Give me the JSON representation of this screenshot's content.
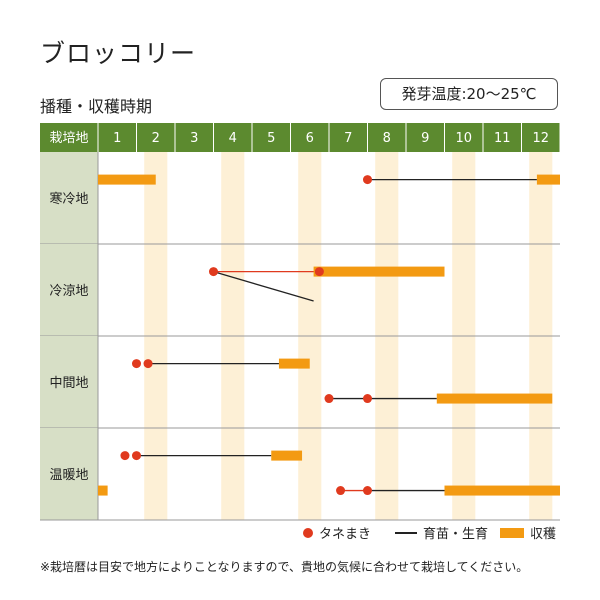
{
  "title": "ブロッコリー",
  "subtitle": "播種・収穫時期",
  "temperature_badge": "発芽温度:20〜25℃",
  "header_label": "栽培地",
  "months": [
    "1",
    "2",
    "3",
    "4",
    "5",
    "6",
    "7",
    "8",
    "9",
    "10",
    "11",
    "12"
  ],
  "regions": [
    "寒冷地",
    "冷涼地",
    "中間地",
    "温暖地"
  ],
  "legend": {
    "sowing": "タネまき",
    "growing": "育苗・生育",
    "harvest": "収穫"
  },
  "footnote": "※栽培暦は目安で地方によりことなりますので、貴地の気候に合わせて栽培してください。",
  "colors": {
    "header_green": "#5c8a2f",
    "region_bg": "#d7dfc6",
    "stripe": "#fdf0d6",
    "sowing_dot": "#e03a1e",
    "harvest_bar": "#f39a12",
    "line": "#222222"
  },
  "chart_data": {
    "type": "gantt",
    "x_unit": "month",
    "x_range": [
      1,
      13
    ],
    "rows": [
      {
        "region": "寒冷地",
        "items": [
          {
            "kind": "harvest",
            "start": 1.0,
            "end": 2.5
          },
          {
            "kind": "sow",
            "at": 8.0
          },
          {
            "kind": "grow",
            "start": 8.0,
            "end": 12.4
          },
          {
            "kind": "harvest",
            "start": 12.4,
            "end": 13.0
          }
        ]
      },
      {
        "region": "冷涼地",
        "items": [
          {
            "kind": "sow",
            "at": 4.0
          },
          {
            "kind": "sow",
            "at": 6.75
          },
          {
            "kind": "grow_red",
            "start": 4.0,
            "end": 6.75,
            "lane": 0
          },
          {
            "kind": "grow_diag",
            "from_month": 4.0,
            "to_month": 6.6
          },
          {
            "kind": "harvest",
            "start": 6.6,
            "end": 10.0
          }
        ]
      },
      {
        "region": "中間地",
        "items": [
          {
            "kind": "sow",
            "at": 2.0,
            "lane": 0
          },
          {
            "kind": "sow",
            "at": 2.3,
            "lane": 0
          },
          {
            "kind": "grow",
            "start": 2.3,
            "end": 5.7,
            "lane": 0
          },
          {
            "kind": "harvest",
            "start": 5.7,
            "end": 6.5,
            "lane": 0
          },
          {
            "kind": "sow",
            "at": 7.0,
            "lane": 1
          },
          {
            "kind": "sow",
            "at": 8.0,
            "lane": 1
          },
          {
            "kind": "grow",
            "start": 7.0,
            "end": 9.8,
            "lane": 1
          },
          {
            "kind": "harvest",
            "start": 9.8,
            "end": 12.8,
            "lane": 1
          }
        ]
      },
      {
        "region": "温暖地",
        "items": [
          {
            "kind": "sow",
            "at": 1.7,
            "lane": 0
          },
          {
            "kind": "sow",
            "at": 2.0,
            "lane": 0
          },
          {
            "kind": "grow",
            "start": 2.0,
            "end": 5.5,
            "lane": 0
          },
          {
            "kind": "harvest",
            "start": 5.5,
            "end": 6.3,
            "lane": 0
          },
          {
            "kind": "harvest",
            "start": 1.0,
            "end": 1.25,
            "lane": 1
          },
          {
            "kind": "sow",
            "at": 7.3,
            "lane": 1
          },
          {
            "kind": "sow",
            "at": 8.0,
            "lane": 1
          },
          {
            "kind": "grow_red",
            "start": 7.3,
            "end": 8.0,
            "lane": 1
          },
          {
            "kind": "grow",
            "start": 8.0,
            "end": 10.0,
            "lane": 1
          },
          {
            "kind": "harvest",
            "start": 10.0,
            "end": 13.0,
            "lane": 1
          }
        ]
      }
    ]
  }
}
